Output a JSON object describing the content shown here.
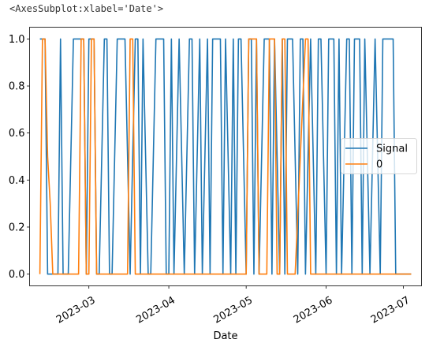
{
  "output_repr": "<AxesSubplot:xlabel='Date'>",
  "chart_data": {
    "type": "line",
    "title": "",
    "xlabel": "Date",
    "ylabel": "",
    "xlim": [
      "2023-02-06",
      "2023-07-08"
    ],
    "ylim": [
      -0.05,
      1.05
    ],
    "x_ticks": [
      "2023-03",
      "2023-04",
      "2023-05",
      "2023-06",
      "2023-07"
    ],
    "x_tick_dates": [
      "2023-03-01",
      "2023-04-01",
      "2023-05-01",
      "2023-06-01",
      "2023-07-01"
    ],
    "y_ticks": [
      "0.0",
      "0.2",
      "0.4",
      "0.6",
      "0.8",
      "1.0"
    ],
    "y_tick_values": [
      0.0,
      0.2,
      0.4,
      0.6,
      0.8,
      1.0
    ],
    "grid": false,
    "legend_position": "center-right",
    "colors": {
      "Signal": "#1f77b4",
      "0": "#ff7f0e"
    },
    "series": [
      {
        "name": "Signal",
        "x": [
          "2023-02-10",
          "2023-02-11",
          "2023-02-12",
          "2023-02-13",
          "2023-02-14",
          "2023-02-15",
          "2023-02-17",
          "2023-02-18",
          "2023-02-19",
          "2023-02-20",
          "2023-02-21",
          "2023-02-23",
          "2023-02-25",
          "2023-02-27",
          "2023-02-28",
          "2023-03-01",
          "2023-03-02",
          "2023-03-03",
          "2023-03-04",
          "2023-03-05",
          "2023-03-07",
          "2023-03-08",
          "2023-03-09",
          "2023-03-10",
          "2023-03-12",
          "2023-03-13",
          "2023-03-14",
          "2023-03-15",
          "2023-03-17",
          "2023-03-19",
          "2023-03-20",
          "2023-03-21",
          "2023-03-22",
          "2023-03-24",
          "2023-03-25",
          "2023-03-27",
          "2023-03-28",
          "2023-03-29",
          "2023-03-30",
          "2023-03-31",
          "2023-04-01",
          "2023-04-02",
          "2023-04-03",
          "2023-04-05",
          "2023-04-07",
          "2023-04-09",
          "2023-04-10",
          "2023-04-11",
          "2023-04-13",
          "2023-04-14",
          "2023-04-16",
          "2023-04-17",
          "2023-04-18",
          "2023-04-20",
          "2023-04-21",
          "2023-04-22",
          "2023-04-23",
          "2023-04-25",
          "2023-04-26",
          "2023-04-27",
          "2023-04-28",
          "2023-04-29",
          "2023-05-01",
          "2023-05-02",
          "2023-05-03",
          "2023-05-04",
          "2023-05-05",
          "2023-05-06",
          "2023-05-08",
          "2023-05-09",
          "2023-05-10",
          "2023-05-11",
          "2023-05-12",
          "2023-05-14",
          "2023-05-15",
          "2023-05-16",
          "2023-05-17",
          "2023-05-18",
          "2023-05-19",
          "2023-05-21",
          "2023-05-22",
          "2023-05-23",
          "2023-05-24",
          "2023-05-26",
          "2023-05-28",
          "2023-05-29",
          "2023-05-30",
          "2023-06-01",
          "2023-06-02",
          "2023-06-04",
          "2023-06-05",
          "2023-06-06",
          "2023-06-07",
          "2023-06-09",
          "2023-06-10",
          "2023-06-11",
          "2023-06-12",
          "2023-06-13",
          "2023-06-14",
          "2023-06-15",
          "2023-06-16",
          "2023-06-18",
          "2023-06-20",
          "2023-06-22",
          "2023-06-23",
          "2023-06-24",
          "2023-06-25",
          "2023-06-27",
          "2023-06-28",
          "2023-06-30",
          "2023-07-04"
        ],
        "values": [
          1,
          1,
          1,
          0,
          0,
          0,
          0,
          1,
          0,
          0,
          0,
          1,
          1,
          1,
          0,
          1,
          1,
          1,
          0,
          0,
          1,
          1,
          0,
          0,
          1,
          1,
          1,
          1,
          0,
          1,
          1,
          0,
          1,
          0,
          0,
          1,
          1,
          1,
          1,
          0,
          0,
          1,
          0,
          1,
          0,
          1,
          1,
          0,
          1,
          0,
          1,
          0,
          1,
          1,
          1,
          0,
          1,
          0,
          1,
          0,
          1,
          1,
          0,
          1,
          1,
          0,
          1,
          0,
          1,
          1,
          1,
          0,
          1,
          0,
          1,
          0,
          1,
          1,
          1,
          0,
          1,
          1,
          0,
          1,
          0,
          1,
          1,
          0,
          1,
          1,
          0,
          1,
          0,
          1,
          1,
          0,
          1,
          1,
          1,
          0,
          1,
          0,
          1,
          0,
          1,
          1,
          1,
          1,
          0,
          0,
          0
        ]
      },
      {
        "name": "0",
        "x": [
          "2023-02-10",
          "2023-02-11",
          "2023-02-12",
          "2023-02-13",
          "2023-02-14",
          "2023-02-15",
          "2023-02-20",
          "2023-02-23",
          "2023-02-25",
          "2023-02-26",
          "2023-02-27",
          "2023-02-28",
          "2023-03-01",
          "2023-03-02",
          "2023-03-03",
          "2023-03-04",
          "2023-03-05",
          "2023-03-06",
          "2023-03-09",
          "2023-03-12",
          "2023-03-16",
          "2023-03-17",
          "2023-03-18",
          "2023-03-19",
          "2023-03-24",
          "2023-03-25",
          "2023-04-20",
          "2023-05-01",
          "2023-05-02",
          "2023-05-05",
          "2023-05-06",
          "2023-05-07",
          "2023-05-09",
          "2023-05-10",
          "2023-05-11",
          "2023-05-12",
          "2023-05-13",
          "2023-05-14",
          "2023-05-15",
          "2023-05-16",
          "2023-05-17",
          "2023-05-18",
          "2023-05-20",
          "2023-05-24",
          "2023-05-25",
          "2023-05-26",
          "2023-05-27",
          "2023-06-10",
          "2023-07-04"
        ],
        "values": [
          0,
          1,
          1,
          0.5,
          0.3,
          0,
          0,
          0,
          0,
          1,
          1,
          0,
          0,
          1,
          1,
          0,
          0,
          0,
          0,
          0,
          0,
          1,
          1,
          0,
          0,
          0,
          0,
          0,
          1,
          1,
          0,
          0,
          0,
          1,
          1,
          1,
          0,
          0,
          1,
          1,
          0,
          0,
          0,
          1,
          1,
          0,
          0,
          0,
          0
        ]
      }
    ]
  }
}
